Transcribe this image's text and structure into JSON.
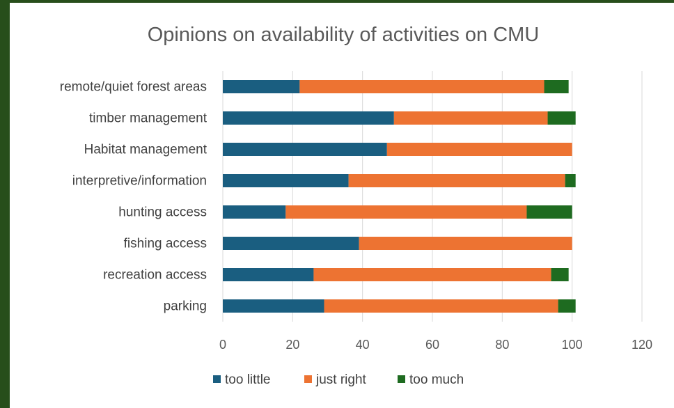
{
  "chart_data": {
    "type": "bar",
    "orientation": "horizontal",
    "stacked": true,
    "title": "Opinions on availability  of activities on CMU",
    "categories": [
      "remote/quiet forest areas",
      "timber management",
      "Habitat management",
      "interpretive/information",
      "hunting access",
      "fishing access",
      "recreation access",
      "parking"
    ],
    "series": [
      {
        "name": "too little",
        "color": "#1a5e80",
        "values": [
          22,
          49,
          47,
          36,
          18,
          39,
          26,
          29
        ]
      },
      {
        "name": "just right",
        "color": "#ed7332",
        "values": [
          70,
          44,
          53,
          62,
          69,
          61,
          68,
          67
        ]
      },
      {
        "name": "too much",
        "color": "#1e6b20",
        "values": [
          7,
          8,
          0,
          3,
          13,
          0,
          5,
          5
        ]
      }
    ],
    "xlim": [
      0,
      120
    ],
    "xticks": [
      "0",
      "20",
      "40",
      "60",
      "80",
      "100",
      "120"
    ],
    "grid": true,
    "legend_position": "bottom"
  }
}
